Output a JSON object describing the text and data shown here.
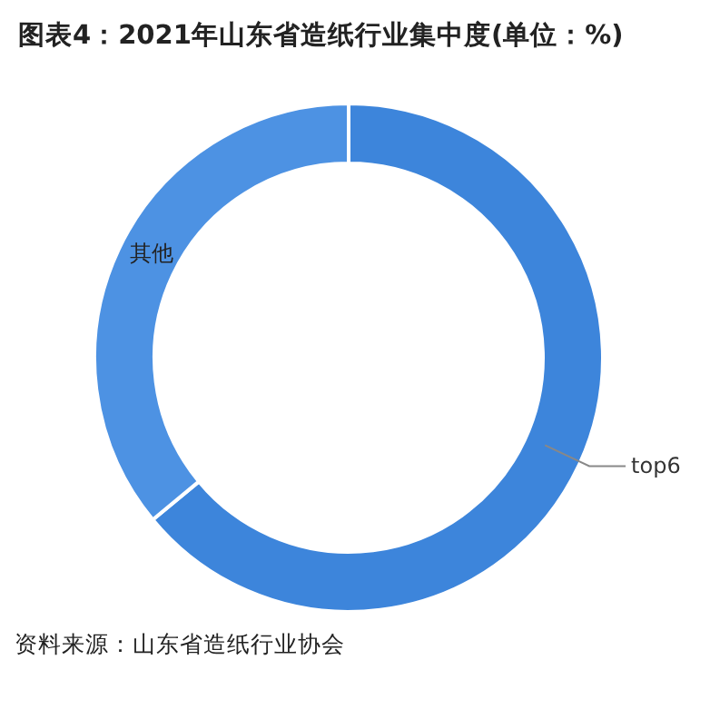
{
  "chart_data": {
    "type": "donut",
    "title": "图表4：2021年山东省造纸行业集中度(单位：%)",
    "categories": [
      "top6",
      "其他"
    ],
    "values": [
      64,
      36
    ],
    "colors": [
      "#3d85db",
      "#4d92e3"
    ],
    "annotations": [
      "资料来源：山东省造纸行业协会"
    ]
  }
}
